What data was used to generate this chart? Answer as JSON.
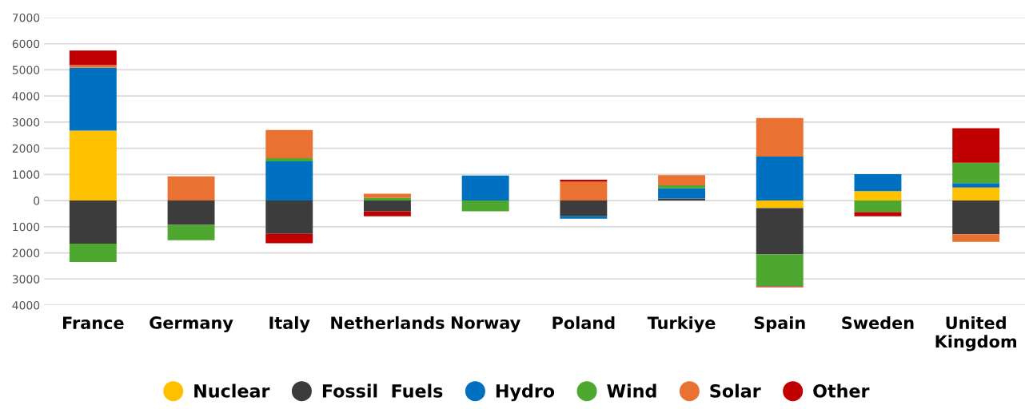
{
  "chart_data": {
    "type": "bar",
    "stacked": true,
    "categories": [
      "France",
      "Germany",
      "Italy",
      "Netherlands",
      "Norway",
      "Poland",
      "Turkiye",
      "Spain",
      "Sweden",
      "United\nKingdom"
    ],
    "series": [
      {
        "name": "Nuclear",
        "color": "#ffc000",
        "values": [
          2680,
          null,
          null,
          null,
          null,
          null,
          null,
          -290,
          360,
          500
        ]
      },
      {
        "name": "Fossil  Fuels",
        "color": "#3c3c3c",
        "values": [
          -1650,
          -930,
          -1270,
          -410,
          null,
          -600,
          80,
          -1770,
          null,
          -1290
        ]
      },
      {
        "name": "Hydro",
        "color": "#0070c0",
        "values": [
          2400,
          null,
          1500,
          null,
          960,
          -90,
          400,
          1680,
          650,
          170
        ]
      },
      {
        "name": "Wind",
        "color": "#4ea72e",
        "values": [
          -700,
          -590,
          120,
          100,
          -410,
          null,
          100,
          -1220,
          -440,
          780
        ]
      },
      {
        "name": "Solar",
        "color": "#e97132",
        "values": [
          100,
          930,
          1080,
          160,
          null,
          720,
          390,
          1480,
          null,
          -290
        ]
      },
      {
        "name": "Other",
        "color": "#c00000",
        "values": [
          560,
          null,
          -360,
          -190,
          null,
          80,
          null,
          -30,
          -160,
          1320
        ]
      }
    ],
    "ylim": [
      -4000,
      7000
    ],
    "yticks": [
      {
        "value": -4000,
        "label": "4000"
      },
      {
        "value": -3000,
        "label": "3000"
      },
      {
        "value": -2000,
        "label": "2000"
      },
      {
        "value": -1000,
        "label": "1000"
      },
      0,
      1000,
      2000,
      3000,
      4000,
      5000,
      6000,
      7000
    ],
    "grid": "y",
    "legend": "bottom"
  }
}
